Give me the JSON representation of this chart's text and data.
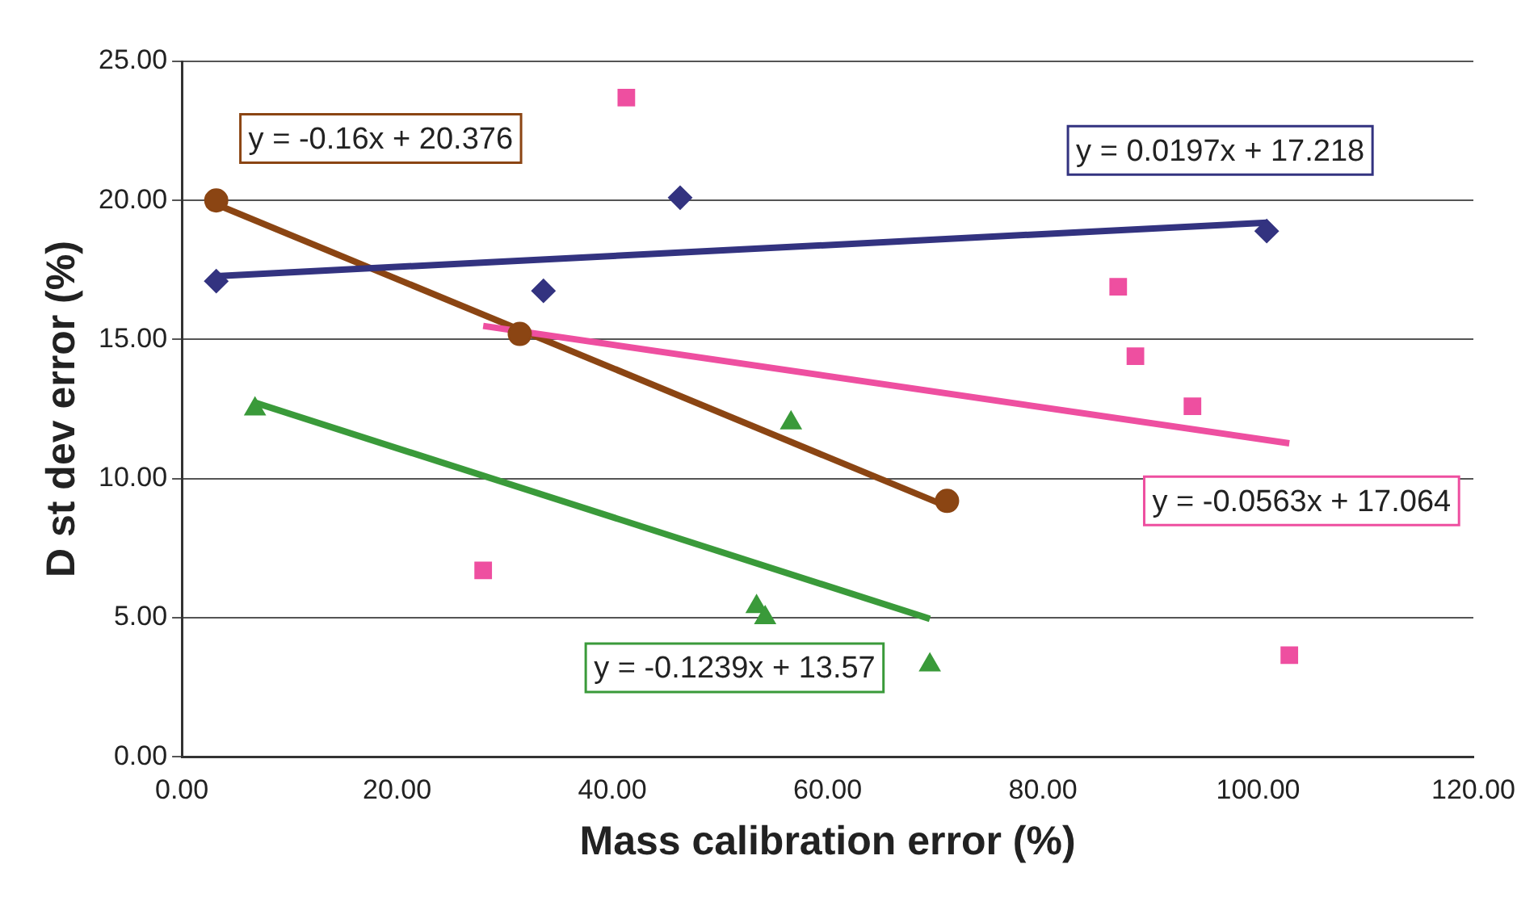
{
  "chart_data": {
    "type": "scatter",
    "xlabel": "Mass calibration error (%)",
    "ylabel": "D st dev error (%)",
    "xlim": [
      0,
      120
    ],
    "xticks": [
      {
        "value": 0,
        "label": "0.00"
      },
      {
        "value": 20,
        "label": "20.00"
      },
      {
        "value": 40,
        "label": "40.00"
      },
      {
        "value": 60,
        "label": "60.00"
      },
      {
        "value": 80,
        "label": "80.00"
      },
      {
        "value": 100,
        "label": "100.00"
      },
      {
        "value": 120,
        "label": "120.00"
      }
    ],
    "ylim": [
      0,
      25
    ],
    "yticks": [
      {
        "value": 0,
        "label": "0.00"
      },
      {
        "value": 5,
        "label": "5.00"
      },
      {
        "value": 10,
        "label": "10.00"
      },
      {
        "value": 15,
        "label": "15.00"
      },
      {
        "value": 20,
        "label": "20.00"
      },
      {
        "value": 25,
        "label": "25.00"
      }
    ],
    "grid": "y",
    "legend": false,
    "series": [
      {
        "marker": "diamond",
        "color": "#333380",
        "x": [
          3.2,
          33.6,
          46.3,
          100.8
        ],
        "values": [
          17.1,
          16.75,
          20.1,
          18.9
        ]
      },
      {
        "marker": "square",
        "color": "#ee4fa0",
        "x": [
          41.3,
          28.0,
          87.0,
          88.6,
          93.9,
          102.9
        ],
        "values": [
          23.7,
          6.7,
          16.9,
          14.4,
          12.6,
          3.65
        ]
      },
      {
        "marker": "circle",
        "color": "#8b4513",
        "x": [
          3.2,
          31.4,
          71.1
        ],
        "values": [
          20.0,
          15.2,
          9.2
        ]
      },
      {
        "marker": "triangle",
        "color": "#3a9a3a",
        "x": [
          6.8,
          56.6,
          53.4,
          54.2,
          69.5
        ],
        "values": [
          12.5,
          12.0,
          5.4,
          5.0,
          3.3
        ]
      },
      {
        "type": "line",
        "marker": "none",
        "color": "#333380",
        "x": [
          3.2,
          100.8
        ],
        "values": [
          17.28,
          19.2
        ]
      },
      {
        "type": "line",
        "marker": "none",
        "color": "#ee4fa0",
        "x": [
          28.0,
          102.9
        ],
        "values": [
          15.49,
          11.27
        ]
      },
      {
        "type": "line",
        "marker": "none",
        "color": "#8b4513",
        "x": [
          3.2,
          71.1
        ],
        "values": [
          19.86,
          9.0
        ]
      },
      {
        "type": "line",
        "marker": "none",
        "color": "#3a9a3a",
        "x": [
          6.8,
          69.5
        ],
        "values": [
          12.73,
          4.96
        ]
      }
    ],
    "annotations": [
      "y = 0.0197x + 17.218",
      "y = -0.0563x + 17.064",
      "y = -0.16x + 20.376",
      "y = -0.1239x + 13.57"
    ]
  }
}
